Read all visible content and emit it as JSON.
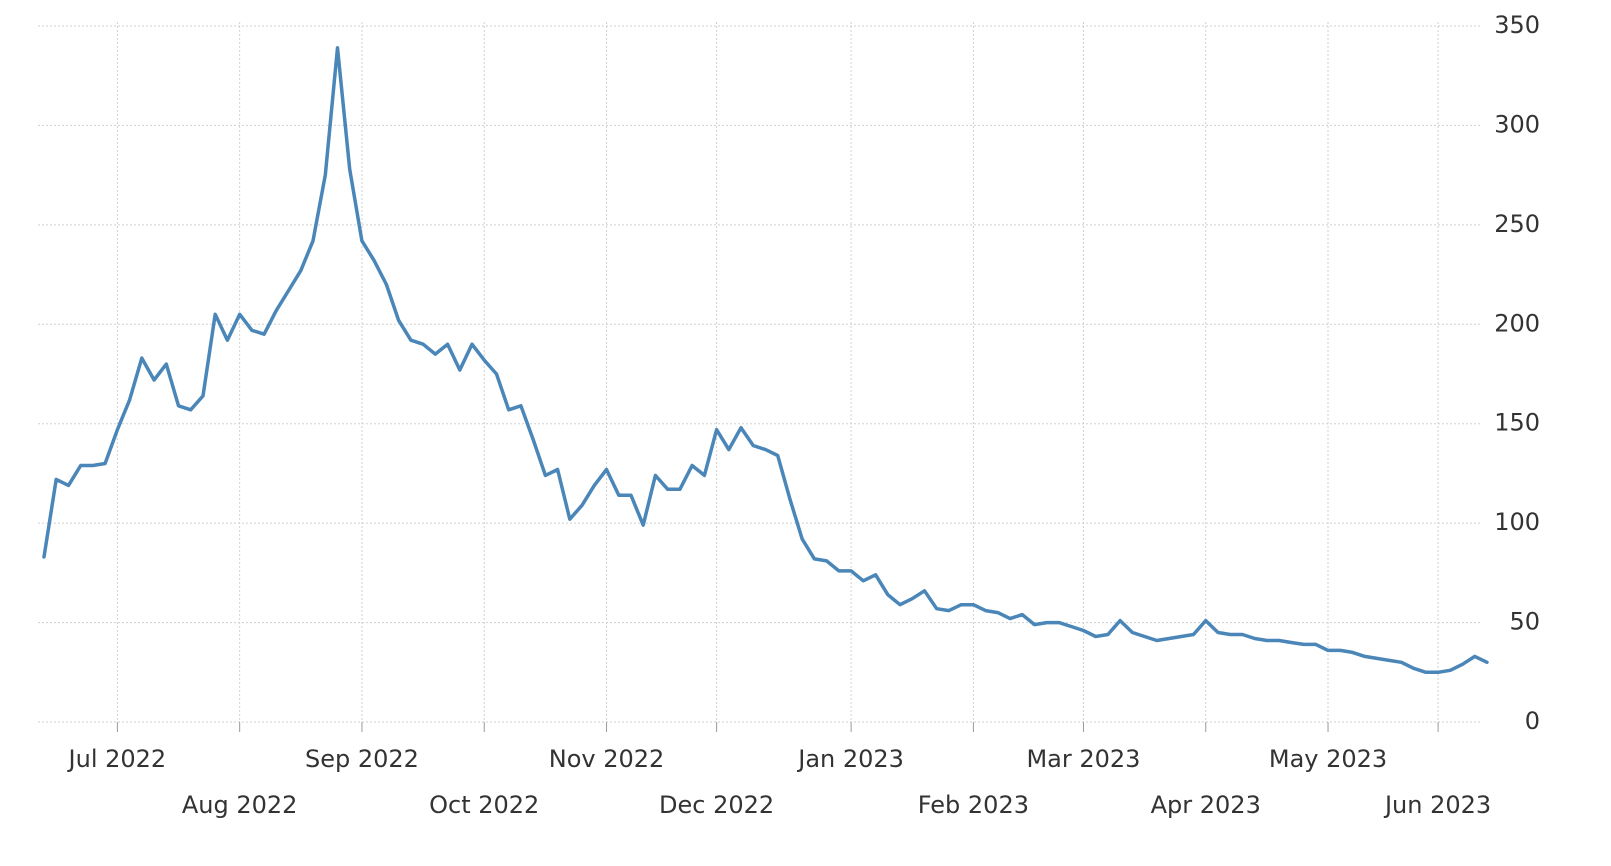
{
  "chart_data": {
    "type": "line",
    "categories": [
      null,
      null,
      null,
      null,
      null,
      null,
      "Jul 2022",
      null,
      null,
      null,
      null,
      null,
      null,
      null,
      null,
      null,
      "Aug 2022",
      null,
      null,
      null,
      null,
      null,
      null,
      null,
      null,
      null,
      "Sep 2022",
      null,
      null,
      null,
      null,
      null,
      null,
      null,
      null,
      null,
      "Oct 2022",
      null,
      null,
      null,
      null,
      null,
      null,
      null,
      null,
      null,
      "Nov 2022",
      null,
      null,
      null,
      null,
      null,
      null,
      null,
      null,
      "Dec 2022",
      null,
      null,
      null,
      null,
      null,
      null,
      null,
      null,
      null,
      null,
      "Jan 2023",
      null,
      null,
      null,
      null,
      null,
      null,
      null,
      null,
      null,
      "Feb 2023",
      null,
      null,
      null,
      null,
      null,
      null,
      null,
      null,
      "Mar 2023",
      null,
      null,
      null,
      null,
      null,
      null,
      null,
      null,
      null,
      "Apr 2023",
      null,
      null,
      null,
      null,
      null,
      null,
      null,
      null,
      null,
      "May 2023",
      null,
      null,
      null,
      null,
      null,
      null,
      null,
      null,
      "Jun 2023",
      null,
      null,
      null,
      null
    ],
    "values": [
      83,
      122,
      119,
      129,
      129,
      130,
      147,
      162,
      183,
      172,
      180,
      159,
      157,
      164,
      205,
      192,
      205,
      197,
      195,
      207,
      217,
      227,
      242,
      275,
      339,
      278,
      242,
      232,
      220,
      202,
      192,
      190,
      185,
      190,
      177,
      190,
      182,
      175,
      157,
      159,
      142,
      124,
      127,
      102,
      109,
      119,
      127,
      114,
      114,
      99,
      124,
      117,
      117,
      129,
      124,
      147,
      137,
      148,
      139,
      137,
      134,
      112,
      92,
      82,
      81,
      76,
      76,
      71,
      74,
      64,
      59,
      62,
      66,
      57,
      56,
      59,
      59,
      56,
      55,
      52,
      54,
      49,
      50,
      50,
      48,
      46,
      43,
      44,
      51,
      45,
      43,
      41,
      42,
      43,
      44,
      51,
      45,
      44,
      44,
      42,
      41,
      41,
      40,
      39,
      39,
      36,
      36,
      35,
      33,
      32,
      31,
      30,
      27,
      25,
      25,
      26,
      29,
      33,
      30
    ],
    "color": "#4a86b8",
    "ylim": [
      0,
      350
    ],
    "yticks": [
      0,
      50,
      100,
      150,
      200,
      250,
      300,
      350
    ],
    "grid": true
  }
}
